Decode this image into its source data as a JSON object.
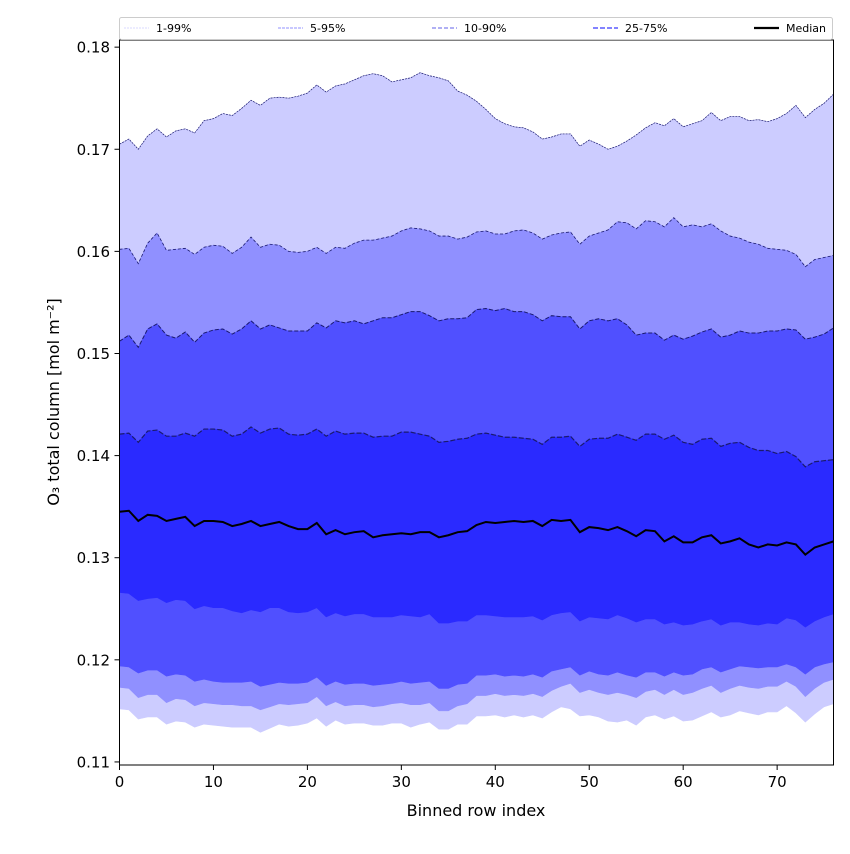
{
  "chart_data": {
    "type": "area",
    "title": "",
    "xlabel": "Binned row index",
    "ylabel": "O₃ total column [mol m⁻²]",
    "xlim": [
      0,
      76
    ],
    "ylim": [
      0.1097,
      0.1807
    ],
    "xticks": [
      "0",
      "10",
      "20",
      "30",
      "40",
      "50",
      "60",
      "70"
    ],
    "xtick_values": [
      0,
      10,
      20,
      30,
      40,
      50,
      60,
      70
    ],
    "yticks": [
      "0.11",
      "0.12",
      "0.13",
      "0.14",
      "0.15",
      "0.16",
      "0.17",
      "0.18"
    ],
    "ytick_values": [
      0.11,
      0.12,
      0.13,
      0.14,
      0.15,
      0.16,
      0.17,
      0.18
    ],
    "grid": false,
    "legend_position": "top-outside",
    "legend": [
      "1-99%",
      "5-95%",
      "10-90%",
      "25-75%",
      "Median"
    ],
    "colors": {
      "p1_99": "#ccccff",
      "p5_95": "#9090ff",
      "p10_90": "#5050ff",
      "p25_75": "#2a2aff",
      "median": "#000000",
      "edge": "#1a1a6e"
    },
    "series": [
      {
        "name": "p99",
        "values": [
          0.1705,
          0.171,
          0.17,
          0.1713,
          0.172,
          0.1712,
          0.1718,
          0.172,
          0.1716,
          0.1728,
          0.173,
          0.1735,
          0.1733,
          0.174,
          0.1748,
          0.1743,
          0.175,
          0.1751,
          0.175,
          0.1752,
          0.1755,
          0.1763,
          0.1756,
          0.1762,
          0.1764,
          0.1768,
          0.1772,
          0.1774,
          0.1772,
          0.1766,
          0.1768,
          0.177,
          0.1775,
          0.1772,
          0.177,
          0.1767,
          0.1757,
          0.1753,
          0.1747,
          0.1739,
          0.173,
          0.1725,
          0.1722,
          0.1721,
          0.1717,
          0.171,
          0.1712,
          0.1715,
          0.1715,
          0.1703,
          0.1709,
          0.1705,
          0.17,
          0.1703,
          0.1708,
          0.1714,
          0.1721,
          0.1726,
          0.1723,
          0.173,
          0.1722,
          0.1725,
          0.1728,
          0.1736,
          0.1728,
          0.1732,
          0.1732,
          0.1728,
          0.1729,
          0.1727,
          0.173,
          0.1735,
          0.1743,
          0.1731,
          0.1739,
          0.1745,
          0.1754
        ]
      },
      {
        "name": "p95",
        "values": [
          0.1602,
          0.1603,
          0.1588,
          0.1608,
          0.1618,
          0.1601,
          0.1602,
          0.1603,
          0.1597,
          0.1604,
          0.1606,
          0.1605,
          0.1598,
          0.1604,
          0.1614,
          0.1604,
          0.1607,
          0.1606,
          0.16,
          0.1599,
          0.16,
          0.1604,
          0.1598,
          0.1604,
          0.1603,
          0.1608,
          0.1611,
          0.1611,
          0.1613,
          0.1615,
          0.162,
          0.1623,
          0.1622,
          0.162,
          0.1615,
          0.1615,
          0.1612,
          0.1614,
          0.1619,
          0.162,
          0.1617,
          0.1617,
          0.162,
          0.1621,
          0.1618,
          0.1612,
          0.1616,
          0.1618,
          0.1619,
          0.1607,
          0.1615,
          0.1618,
          0.1621,
          0.1629,
          0.1628,
          0.1622,
          0.163,
          0.1629,
          0.1624,
          0.1633,
          0.1624,
          0.1626,
          0.1624,
          0.1627,
          0.162,
          0.1615,
          0.1613,
          0.1609,
          0.1607,
          0.1603,
          0.1602,
          0.1601,
          0.1597,
          0.1585,
          0.1592,
          0.1594,
          0.1596
        ]
      },
      {
        "name": "p90",
        "values": [
          0.1512,
          0.1518,
          0.1506,
          0.1524,
          0.1529,
          0.1518,
          0.1515,
          0.1521,
          0.1511,
          0.152,
          0.1523,
          0.1524,
          0.1519,
          0.1524,
          0.1532,
          0.1524,
          0.1528,
          0.1525,
          0.1522,
          0.1522,
          0.1522,
          0.153,
          0.1525,
          0.1532,
          0.153,
          0.1532,
          0.1529,
          0.1532,
          0.1535,
          0.1535,
          0.1538,
          0.1541,
          0.1541,
          0.1537,
          0.1532,
          0.1534,
          0.1534,
          0.1535,
          0.1543,
          0.1544,
          0.1542,
          0.1544,
          0.1541,
          0.1541,
          0.1538,
          0.1532,
          0.1537,
          0.1536,
          0.1536,
          0.1524,
          0.1532,
          0.1534,
          0.1532,
          0.1534,
          0.1528,
          0.1518,
          0.152,
          0.152,
          0.1513,
          0.1518,
          0.1514,
          0.1517,
          0.1521,
          0.1524,
          0.1516,
          0.1518,
          0.1522,
          0.152,
          0.152,
          0.1522,
          0.1522,
          0.1524,
          0.1523,
          0.1514,
          0.1516,
          0.1519,
          0.1525
        ]
      },
      {
        "name": "p75",
        "values": [
          0.1421,
          0.1422,
          0.1413,
          0.1424,
          0.1425,
          0.1419,
          0.1419,
          0.1422,
          0.1419,
          0.1426,
          0.1426,
          0.1425,
          0.1419,
          0.1421,
          0.1428,
          0.1422,
          0.1426,
          0.1427,
          0.1421,
          0.142,
          0.1421,
          0.1426,
          0.1419,
          0.1424,
          0.1421,
          0.1422,
          0.1422,
          0.1418,
          0.1419,
          0.1419,
          0.1423,
          0.1423,
          0.1421,
          0.1419,
          0.1413,
          0.1414,
          0.1416,
          0.1417,
          0.1421,
          0.1422,
          0.142,
          0.1418,
          0.1418,
          0.1417,
          0.1416,
          0.1411,
          0.1418,
          0.1418,
          0.1419,
          0.1409,
          0.1416,
          0.1417,
          0.1417,
          0.1421,
          0.1418,
          0.1415,
          0.1421,
          0.1421,
          0.1416,
          0.142,
          0.1413,
          0.1411,
          0.1416,
          0.1417,
          0.1409,
          0.1412,
          0.1413,
          0.1408,
          0.1405,
          0.1405,
          0.1402,
          0.1404,
          0.1399,
          0.1389,
          0.1394,
          0.1395,
          0.1396
        ]
      },
      {
        "name": "median",
        "values": [
          0.1345,
          0.1346,
          0.1336,
          0.1342,
          0.1341,
          0.1336,
          0.1338,
          0.134,
          0.1331,
          0.1336,
          0.1336,
          0.1335,
          0.1331,
          0.1333,
          0.1336,
          0.1331,
          0.1333,
          0.1335,
          0.1331,
          0.1328,
          0.1328,
          0.1334,
          0.1323,
          0.1327,
          0.1323,
          0.1325,
          0.1326,
          0.132,
          0.1322,
          0.1323,
          0.1324,
          0.1323,
          0.1325,
          0.1325,
          0.132,
          0.1322,
          0.1325,
          0.1326,
          0.1332,
          0.1335,
          0.1334,
          0.1335,
          0.1336,
          0.1335,
          0.1336,
          0.1331,
          0.1337,
          0.1336,
          0.1337,
          0.1325,
          0.133,
          0.1329,
          0.1327,
          0.133,
          0.1326,
          0.1321,
          0.1327,
          0.1326,
          0.1316,
          0.1321,
          0.1315,
          0.1315,
          0.132,
          0.1322,
          0.1314,
          0.1316,
          0.1319,
          0.1313,
          0.131,
          0.1313,
          0.1312,
          0.1315,
          0.1313,
          0.1303,
          0.131,
          0.1313,
          0.1316
        ]
      },
      {
        "name": "p25",
        "values": [
          0.1266,
          0.1265,
          0.1258,
          0.126,
          0.1261,
          0.1256,
          0.1259,
          0.1258,
          0.125,
          0.1253,
          0.1251,
          0.1251,
          0.1248,
          0.1246,
          0.1249,
          0.1247,
          0.1251,
          0.1251,
          0.1247,
          0.1246,
          0.1247,
          0.1251,
          0.1242,
          0.1246,
          0.1243,
          0.1245,
          0.1245,
          0.1242,
          0.1242,
          0.1242,
          0.1244,
          0.1243,
          0.1242,
          0.1245,
          0.1236,
          0.1236,
          0.1238,
          0.1238,
          0.1244,
          0.1244,
          0.1243,
          0.1242,
          0.1242,
          0.1242,
          0.1243,
          0.1239,
          0.1244,
          0.1246,
          0.1247,
          0.1238,
          0.1242,
          0.1241,
          0.124,
          0.1244,
          0.1241,
          0.1237,
          0.124,
          0.124,
          0.1235,
          0.1237,
          0.1234,
          0.1235,
          0.1238,
          0.124,
          0.1234,
          0.1237,
          0.1237,
          0.1235,
          0.1234,
          0.1236,
          0.1235,
          0.1241,
          0.1239,
          0.1232,
          0.1238,
          0.1242,
          0.1245
        ]
      },
      {
        "name": "p10",
        "values": [
          0.1194,
          0.1193,
          0.1187,
          0.119,
          0.119,
          0.1184,
          0.1186,
          0.1185,
          0.1179,
          0.1181,
          0.1179,
          0.1178,
          0.1178,
          0.1178,
          0.1179,
          0.1174,
          0.1176,
          0.1178,
          0.1177,
          0.1177,
          0.1178,
          0.1183,
          0.1175,
          0.1179,
          0.1176,
          0.1177,
          0.1177,
          0.1175,
          0.1176,
          0.1177,
          0.1179,
          0.1177,
          0.1178,
          0.1179,
          0.1172,
          0.1172,
          0.1176,
          0.1177,
          0.1185,
          0.1185,
          0.1186,
          0.1184,
          0.1185,
          0.1184,
          0.1186,
          0.1183,
          0.1189,
          0.1191,
          0.1193,
          0.1185,
          0.1189,
          0.1186,
          0.1185,
          0.1188,
          0.1185,
          0.1183,
          0.1188,
          0.1188,
          0.1184,
          0.1188,
          0.1185,
          0.1186,
          0.1191,
          0.1193,
          0.1188,
          0.1191,
          0.1194,
          0.1193,
          0.1192,
          0.1193,
          0.1193,
          0.1196,
          0.1193,
          0.1186,
          0.1193,
          0.1196,
          0.1198
        ]
      },
      {
        "name": "p5",
        "values": [
          0.1173,
          0.1172,
          0.1163,
          0.1166,
          0.1166,
          0.1158,
          0.1162,
          0.1161,
          0.1155,
          0.1158,
          0.1157,
          0.1156,
          0.1156,
          0.1155,
          0.1155,
          0.1151,
          0.1154,
          0.1157,
          0.1156,
          0.1157,
          0.1158,
          0.1164,
          0.1155,
          0.1159,
          0.1155,
          0.1156,
          0.1156,
          0.1154,
          0.1155,
          0.1157,
          0.1158,
          0.1156,
          0.1156,
          0.1158,
          0.115,
          0.115,
          0.1155,
          0.1157,
          0.1165,
          0.1165,
          0.1167,
          0.1165,
          0.1166,
          0.1165,
          0.1167,
          0.1164,
          0.117,
          0.1174,
          0.1177,
          0.1168,
          0.1171,
          0.1168,
          0.1166,
          0.1168,
          0.1166,
          0.1163,
          0.1169,
          0.1171,
          0.1166,
          0.1171,
          0.1166,
          0.1168,
          0.1172,
          0.1175,
          0.1168,
          0.1172,
          0.1175,
          0.1173,
          0.1172,
          0.1174,
          0.1174,
          0.1179,
          0.1174,
          0.1164,
          0.1172,
          0.1178,
          0.1181
        ]
      },
      {
        "name": "p1",
        "values": [
          0.1152,
          0.1151,
          0.1142,
          0.1144,
          0.1144,
          0.1137,
          0.114,
          0.1139,
          0.1134,
          0.1137,
          0.1136,
          0.1135,
          0.1134,
          0.1134,
          0.1134,
          0.1129,
          0.1133,
          0.1137,
          0.1135,
          0.1136,
          0.1138,
          0.1143,
          0.1135,
          0.1141,
          0.1137,
          0.1138,
          0.1138,
          0.1136,
          0.1136,
          0.1138,
          0.1138,
          0.1134,
          0.1137,
          0.1139,
          0.1132,
          0.1132,
          0.1137,
          0.1137,
          0.1145,
          0.1145,
          0.1146,
          0.1144,
          0.1146,
          0.1144,
          0.1146,
          0.1143,
          0.1149,
          0.1154,
          0.1152,
          0.1145,
          0.1146,
          0.1144,
          0.114,
          0.1139,
          0.1141,
          0.1136,
          0.1144,
          0.1146,
          0.1142,
          0.1145,
          0.114,
          0.1141,
          0.1145,
          0.1149,
          0.1144,
          0.1146,
          0.115,
          0.1148,
          0.1146,
          0.1149,
          0.1149,
          0.1155,
          0.1148,
          0.1139,
          0.1147,
          0.1154,
          0.1157
        ]
      }
    ]
  }
}
